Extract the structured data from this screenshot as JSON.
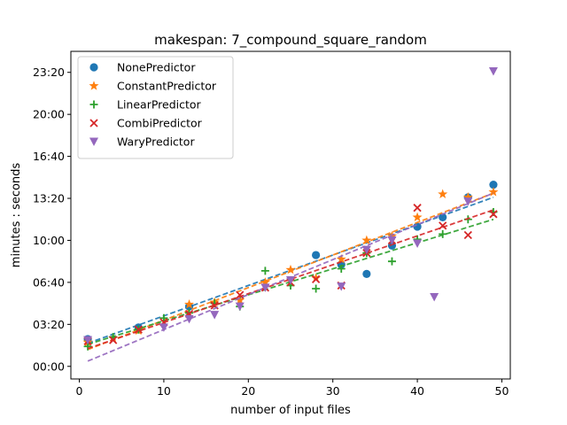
{
  "chart_data": {
    "type": "scatter",
    "title": "makespan: 7_compound_square_random",
    "xlabel": "number of input files",
    "ylabel": "minutes : seconds",
    "xlim": [
      -1,
      51
    ],
    "ylim": [
      -60,
      1500
    ],
    "xticks": [
      0,
      10,
      20,
      30,
      40,
      50
    ],
    "yticks": [
      {
        "value": 0,
        "label": "00:00"
      },
      {
        "value": 200,
        "label": "03:20"
      },
      {
        "value": 400,
        "label": "06:40"
      },
      {
        "value": 600,
        "label": "10:00"
      },
      {
        "value": 800,
        "label": "13:20"
      },
      {
        "value": 1000,
        "label": "16:40"
      },
      {
        "value": 1200,
        "label": "20:00"
      },
      {
        "value": 1400,
        "label": "23:20"
      }
    ],
    "legend_position": "upper-left",
    "grid": false,
    "series": [
      {
        "name": "NonePredictor",
        "marker": "circle",
        "color": "#1f77b4",
        "x": [
          1,
          7,
          13,
          28,
          31,
          34,
          37,
          40,
          43,
          46,
          49
        ],
        "y": [
          130,
          185,
          285,
          530,
          485,
          440,
          575,
          665,
          710,
          805,
          865
        ],
        "fit": [
          [
            1,
            110
          ],
          [
            49,
            805
          ]
        ]
      },
      {
        "name": "ConstantPredictor",
        "marker": "star",
        "color": "#ff7f0e",
        "x": [
          1,
          4,
          7,
          13,
          16,
          19,
          22,
          25,
          28,
          31,
          34,
          37,
          40,
          43,
          46,
          49
        ],
        "y": [
          115,
          135,
          170,
          295,
          305,
          315,
          400,
          460,
          420,
          510,
          600,
          620,
          710,
          820,
          805,
          830
        ],
        "fit": [
          [
            1,
            80
          ],
          [
            49,
            825
          ]
        ]
      },
      {
        "name": "LinearPredictor",
        "marker": "plus",
        "color": "#2ca02c",
        "x": [
          1,
          4,
          7,
          10,
          13,
          16,
          19,
          22,
          25,
          28,
          31,
          34,
          37,
          40,
          43,
          46,
          49
        ],
        "y": [
          95,
          140,
          175,
          230,
          255,
          300,
          285,
          455,
          385,
          370,
          465,
          540,
          500,
          605,
          630,
          700,
          735
        ],
        "fit": [
          [
            1,
            105
          ],
          [
            49,
            700
          ]
        ]
      },
      {
        "name": "CombiPredictor",
        "marker": "x",
        "color": "#d62728",
        "x": [
          1,
          4,
          7,
          10,
          13,
          16,
          19,
          22,
          25,
          28,
          31,
          34,
          37,
          40,
          43,
          46,
          49
        ],
        "y": [
          120,
          125,
          175,
          210,
          250,
          290,
          340,
          375,
          400,
          415,
          385,
          540,
          600,
          755,
          670,
          625,
          725
        ],
        "fit": [
          [
            1,
            85
          ],
          [
            49,
            745
          ]
        ]
      },
      {
        "name": "WaryPredictor",
        "marker": "triangle-down",
        "color": "#9467bd",
        "x": [
          1,
          10,
          13,
          16,
          19,
          22,
          25,
          31,
          34,
          37,
          40,
          42,
          46,
          49
        ],
        "y": [
          125,
          185,
          225,
          245,
          285,
          375,
          410,
          380,
          555,
          600,
          585,
          330,
          785,
          1405
        ],
        "fit": [
          [
            1,
            25
          ],
          [
            49,
            825
          ]
        ]
      }
    ]
  }
}
